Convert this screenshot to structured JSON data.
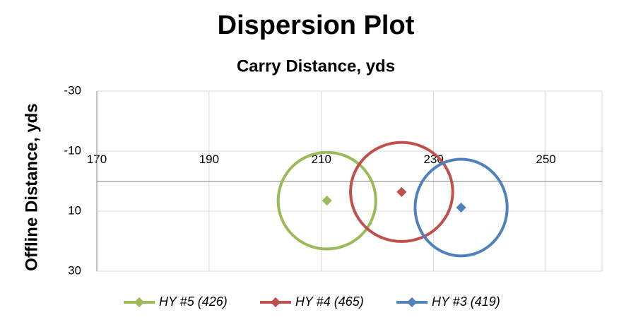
{
  "chart_data": {
    "type": "scatter",
    "title": "Dispersion Plot",
    "subtitle": "Carry Distance, yds",
    "y_label": "Offline Distance, yds",
    "xlim": [
      170,
      260
    ],
    "xticks": [
      170,
      190,
      210,
      230,
      250
    ],
    "ylim": [
      -30,
      30
    ],
    "yticks": [
      -30,
      -10,
      10,
      30
    ],
    "y_inverted": true,
    "grid": true,
    "legend": "bottom",
    "series": [
      {
        "name": "HY #5 (426)",
        "color": "#9bbb59",
        "x": [
          211
        ],
        "y": [
          6.5
        ],
        "rx": 8.7,
        "ry": 16.1
      },
      {
        "name": "HY #4 (465)",
        "color": "#c0504d",
        "x": [
          224.3
        ],
        "y": [
          3.6
        ],
        "rx": 9.1,
        "ry": 16.5
      },
      {
        "name": "HY #3 (419)",
        "color": "#4f81bd",
        "x": [
          234.9
        ],
        "y": [
          8.8
        ],
        "rx": 8.2,
        "ry": 16.1
      }
    ]
  }
}
